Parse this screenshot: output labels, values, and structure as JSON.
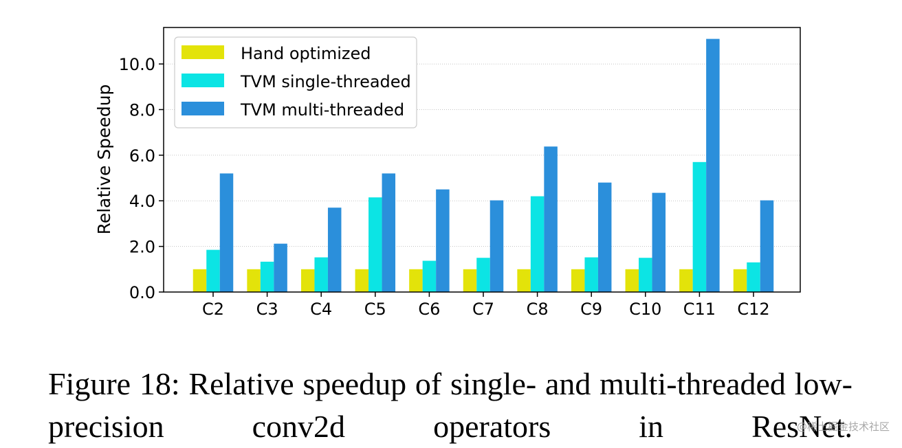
{
  "chart_data": {
    "type": "bar",
    "title": "",
    "xlabel": "",
    "ylabel": "Relative Speedup",
    "ylim": [
      0,
      11.6
    ],
    "yticks": [
      "0.0",
      "2.0",
      "4.0",
      "6.0",
      "8.0",
      "10.0"
    ],
    "grid": "horizontal dotted",
    "legend_position": "top-left",
    "categories": [
      "C2",
      "C3",
      "C4",
      "C5",
      "C6",
      "C7",
      "C8",
      "C9",
      "C10",
      "C11",
      "C12"
    ],
    "series": [
      {
        "name": "Hand optimized",
        "color": "#e3e30a",
        "values": [
          1.0,
          1.0,
          1.0,
          1.0,
          1.0,
          1.0,
          1.0,
          1.0,
          1.0,
          1.0,
          1.0
        ]
      },
      {
        "name": "TVM single-threaded",
        "color": "#0ce4e4",
        "values": [
          1.85,
          1.33,
          1.52,
          4.15,
          1.37,
          1.5,
          4.2,
          1.52,
          1.5,
          5.7,
          1.3
        ]
      },
      {
        "name": "TVM multi-threaded",
        "color": "#2b8fdb",
        "values": [
          5.2,
          2.12,
          3.7,
          5.2,
          4.5,
          4.02,
          6.38,
          4.8,
          4.35,
          11.1,
          4.02
        ]
      }
    ]
  },
  "caption": "Figure 18: Relative speedup of single- and multi-threaded low-precision conv2d operators in ResNet.",
  "watermark": "@稀土掘金技术社区"
}
